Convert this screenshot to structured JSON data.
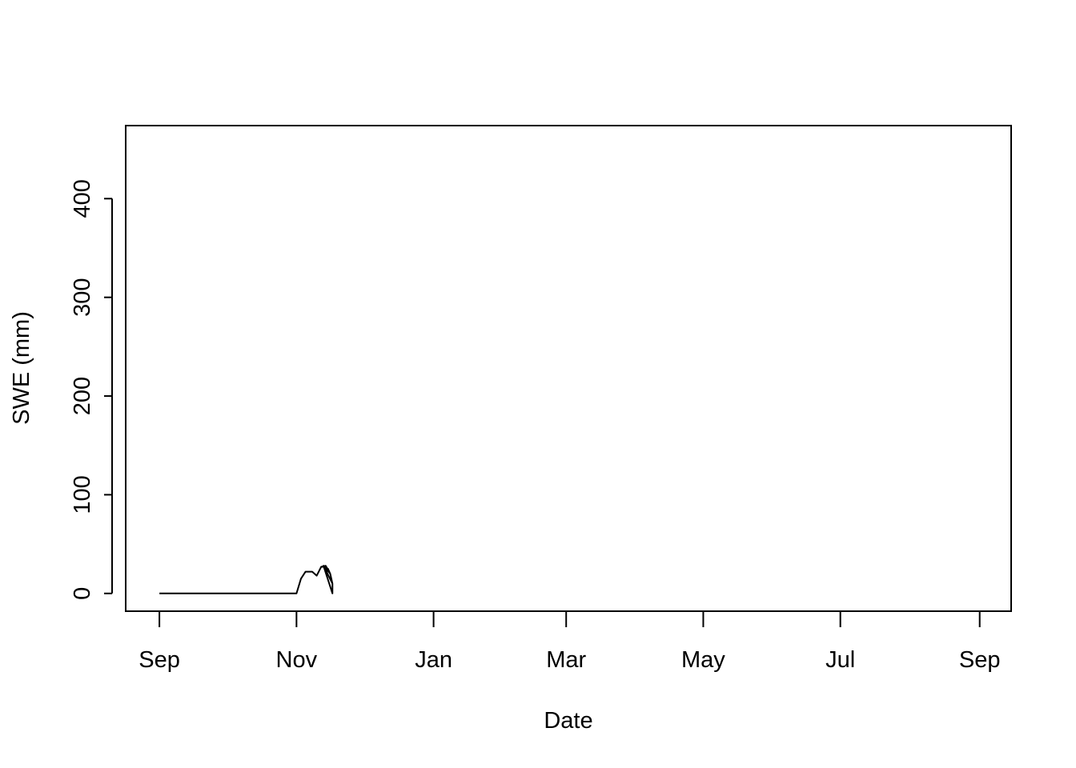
{
  "chart_data": {
    "type": "line",
    "title": "",
    "xlabel": "Date",
    "ylabel": "SWE (mm)",
    "x_ticks": [
      {
        "label": "Sep",
        "date": "2017-09-01"
      },
      {
        "label": "Nov",
        "date": "2017-11-01"
      },
      {
        "label": "Jan",
        "date": "2018-01-01"
      },
      {
        "label": "Mar",
        "date": "2018-03-01"
      },
      {
        "label": "May",
        "date": "2018-05-01"
      },
      {
        "label": "Jul",
        "date": "2018-07-01"
      },
      {
        "label": "Sep",
        "date": "2018-09-01"
      }
    ],
    "y_ticks": [
      0,
      100,
      200,
      300,
      400
    ],
    "xlim": [
      "2017-08-17",
      "2018-09-15"
    ],
    "ylim": [
      -18,
      474
    ],
    "grid": false,
    "legend": "none",
    "series": [
      {
        "color": "#000000",
        "points": [
          [
            "2017-09-01",
            0
          ],
          [
            "2017-11-01",
            0
          ],
          [
            "2017-11-03",
            15
          ],
          [
            "2017-11-05",
            22
          ],
          [
            "2017-11-08",
            22
          ],
          [
            "2017-11-10",
            18
          ],
          [
            "2017-11-12",
            27
          ],
          [
            "2017-11-14",
            28
          ],
          [
            "2017-11-16",
            20
          ],
          [
            "2017-11-13",
            28
          ],
          [
            "2017-11-15",
            25
          ],
          [
            "2017-11-13",
            28
          ],
          [
            "2017-11-13",
            28
          ],
          [
            "2017-11-13",
            28
          ],
          [
            "2017-11-13",
            28
          ],
          [
            "2017-11-13",
            28
          ],
          [
            "2017-11-13",
            28
          ],
          [
            "2017-11-13",
            28
          ],
          [
            "2017-11-13",
            28
          ],
          [
            "2017-11-13",
            28
          ],
          [
            "2017-11-13",
            28
          ],
          [
            "2017-11-13",
            28
          ],
          [
            "2017-11-13",
            28
          ],
          [
            "2017-11-13",
            28
          ],
          [
            "2017-11-13",
            28
          ],
          [
            "2017-11-13",
            28
          ],
          [
            "2017-11-13",
            28
          ],
          [
            "2017-11-13",
            28
          ],
          [
            "2017-11-13",
            28
          ],
          [
            "2017-11-13",
            28
          ],
          [
            "2017-11-13",
            28
          ],
          [
            "2017-11-16",
            20
          ],
          [
            "2017-11-13",
            28
          ],
          [
            "2017-11-13",
            28
          ],
          [
            "2017-11-13",
            28
          ],
          [
            "2017-11-13",
            28
          ],
          [
            "2017-11-13",
            28
          ],
          [
            "2017-11-13",
            28
          ],
          [
            "2017-11-13",
            28
          ],
          [
            "2017-11-13",
            28
          ],
          [
            "2017-11-13",
            28
          ],
          [
            "2017-11-13",
            28
          ],
          [
            "2017-11-13",
            28
          ],
          [
            "2017-11-13",
            28
          ],
          [
            "2017-11-13",
            28
          ],
          [
            "2017-11-13",
            28
          ],
          [
            "2017-11-13",
            28
          ],
          [
            "2017-11-13",
            28
          ],
          [
            "2017-11-13",
            28
          ],
          [
            "2017-11-13",
            28
          ],
          [
            "2017-11-13",
            28
          ],
          [
            "2017-11-13",
            28
          ],
          [
            "2017-11-13",
            28
          ],
          [
            "2017-11-13",
            28
          ],
          [
            "2017-11-13",
            28
          ],
          [
            "2017-11-16",
            20
          ],
          [
            "2017-11-14",
            28
          ],
          [
            "2017-11-16",
            20
          ],
          [
            "2017-11-13",
            28
          ],
          [
            "2017-11-16",
            20
          ],
          [
            "2017-11-15",
            25
          ],
          [
            "2017-11-16",
            20
          ],
          [
            "2017-11-16",
            20
          ],
          [
            "2017-11-17",
            10
          ],
          [
            "2017-11-13",
            28
          ],
          [
            "2017-11-17",
            10
          ],
          [
            "2017-11-17",
            0
          ],
          [
            "2017-11-17",
            0
          ],
          [
            "2017-11-13",
            28
          ],
          [
            "2017-11-13",
            28
          ],
          [
            "2017-11-13",
            28
          ],
          [
            "2017-11-13",
            28
          ],
          [
            "2017-11-13",
            28
          ],
          [
            "2017-11-13",
            28
          ],
          [
            "2017-11-13",
            28
          ],
          [
            "2017-11-13",
            28
          ],
          [
            "2017-11-13",
            28
          ],
          [
            "2017-11-13",
            28
          ],
          [
            "2017-11-13",
            28
          ],
          [
            "2017-11-13",
            28
          ],
          [
            "2017-11-13",
            28
          ],
          [
            "2017-11-13",
            28
          ],
          [
            "2017-11-13",
            28
          ],
          [
            "2017-11-13",
            28
          ],
          [
            "2017-11-13",
            28
          ],
          [
            "2017-11-13",
            28
          ],
          [
            "2017-11-13",
            28
          ],
          [
            "2017-11-13",
            28
          ],
          [
            "2017-11-13",
            28
          ],
          [
            "2017-11-13",
            28
          ],
          [
            "2017-11-13",
            28
          ],
          [
            "2017-11-13",
            28
          ],
          [
            "2017-11-13",
            28
          ],
          [
            "2017-11-13",
            28
          ],
          [
            "2017-11-13",
            28
          ],
          [
            "2017-11-13",
            28
          ],
          [
            "2017-11-13",
            28
          ],
          [
            "2017-11-13",
            28
          ],
          [
            "2017-11-13",
            28
          ],
          [
            "2017-11-13",
            28
          ],
          [
            "2017-11-13",
            28
          ],
          [
            "2017-11-13",
            28
          ],
          [
            "2017-11-13",
            28
          ],
          [
            "2017-11-13",
            28
          ],
          [
            "2017-11-13",
            28
          ],
          [
            "2017-11-13",
            28
          ],
          [
            "2017-11-13",
            28
          ],
          [
            "2017-11-13",
            28
          ],
          [
            "2017-11-13",
            28
          ],
          [
            "2017-11-13",
            28
          ],
          [
            "2017-11-13",
            28
          ],
          [
            "2017-11-13",
            28
          ],
          [
            "2017-11-13",
            28
          ],
          [
            "2017-11-13",
            28
          ],
          [
            "2017-11-13",
            28
          ],
          [
            "2017-11-13",
            28
          ],
          [
            "2017-11-13",
            28
          ],
          [
            "2017-11-13",
            28
          ],
          [
            "2017-11-13",
            28
          ],
          [
            "2017-11-13",
            28
          ],
          [
            "2017-11-13",
            28
          ],
          [
            "2017-11-13",
            28
          ],
          [
            "2017-11-13",
            28
          ],
          [
            "2017-11-13",
            28
          ],
          [
            "2017-11-13",
            28
          ],
          [
            "2017-11-13",
            28
          ],
          [
            "2017-11-13",
            28
          ],
          [
            "2017-11-13",
            28
          ],
          [
            "2017-11-13",
            28
          ],
          [
            "2017-11-13",
            28
          ],
          [
            "2017-11-13",
            28
          ],
          [
            "2017-11-13",
            28
          ],
          [
            "2017-11-13",
            28
          ],
          [
            "2017-11-13",
            28
          ],
          [
            "2017-11-13",
            28
          ],
          [
            "2017-11-13",
            28
          ]
        ]
      }
    ]
  }
}
